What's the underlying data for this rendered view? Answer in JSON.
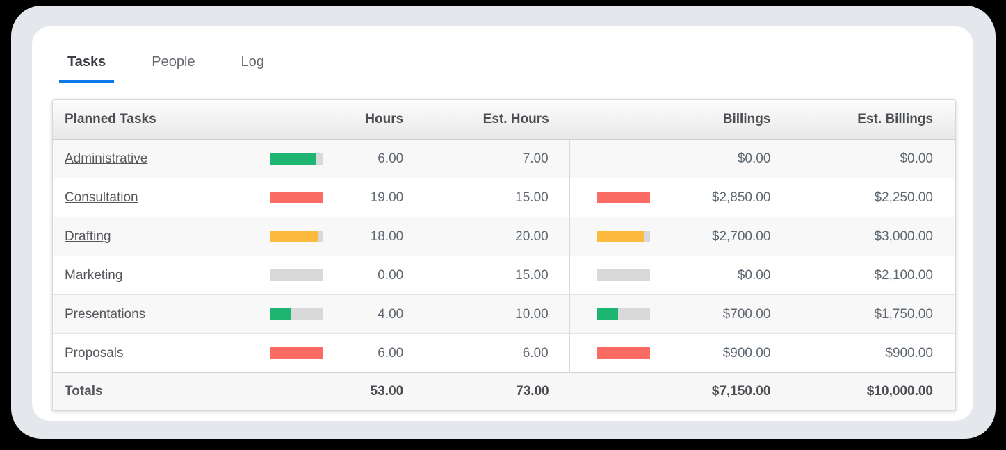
{
  "tabs": [
    {
      "label": "Tasks",
      "active": true
    },
    {
      "label": "People",
      "active": false
    },
    {
      "label": "Log",
      "active": false
    }
  ],
  "table": {
    "headers": [
      "Planned Tasks",
      "Hours",
      "Est. Hours",
      "Billings",
      "Est. Billings"
    ],
    "rows": [
      {
        "task": "Administrative",
        "is_link": true,
        "hours_bar": {
          "color": "green",
          "pct": 86
        },
        "hours": "6.00",
        "est_hours": "7.00",
        "billings_bar": null,
        "billings": "$0.00",
        "est_billings": "$0.00"
      },
      {
        "task": "Consultation",
        "is_link": true,
        "hours_bar": {
          "color": "red",
          "pct": 100
        },
        "hours": "19.00",
        "est_hours": "15.00",
        "billings_bar": {
          "color": "red",
          "pct": 100
        },
        "billings": "$2,850.00",
        "est_billings": "$2,250.00"
      },
      {
        "task": "Drafting",
        "is_link": true,
        "hours_bar": {
          "color": "orange",
          "pct": 90
        },
        "hours": "18.00",
        "est_hours": "20.00",
        "billings_bar": {
          "color": "orange",
          "pct": 90
        },
        "billings": "$2,700.00",
        "est_billings": "$3,000.00"
      },
      {
        "task": "Marketing",
        "is_link": false,
        "hours_bar": {
          "color": "gray",
          "pct": 0
        },
        "hours": "0.00",
        "est_hours": "15.00",
        "billings_bar": {
          "color": "gray",
          "pct": 0
        },
        "billings": "$0.00",
        "est_billings": "$2,100.00"
      },
      {
        "task": "Presentations",
        "is_link": true,
        "hours_bar": {
          "color": "green",
          "pct": 40
        },
        "hours": "4.00",
        "est_hours": "10.00",
        "billings_bar": {
          "color": "green",
          "pct": 40
        },
        "billings": "$700.00",
        "est_billings": "$1,750.00"
      },
      {
        "task": "Proposals",
        "is_link": true,
        "hours_bar": {
          "color": "red",
          "pct": 100
        },
        "hours": "6.00",
        "est_hours": "6.00",
        "billings_bar": {
          "color": "red",
          "pct": 100
        },
        "billings": "$900.00",
        "est_billings": "$900.00"
      }
    ],
    "totals": {
      "label": "Totals",
      "hours": "53.00",
      "est_hours": "73.00",
      "billings": "$7,150.00",
      "est_billings": "$10,000.00"
    }
  },
  "colors": {
    "green": "#1eb572",
    "red": "#f96b63",
    "orange": "#fcba3f",
    "gray_track": "#d9d9d9",
    "accent_blue": "#0d78e8"
  }
}
